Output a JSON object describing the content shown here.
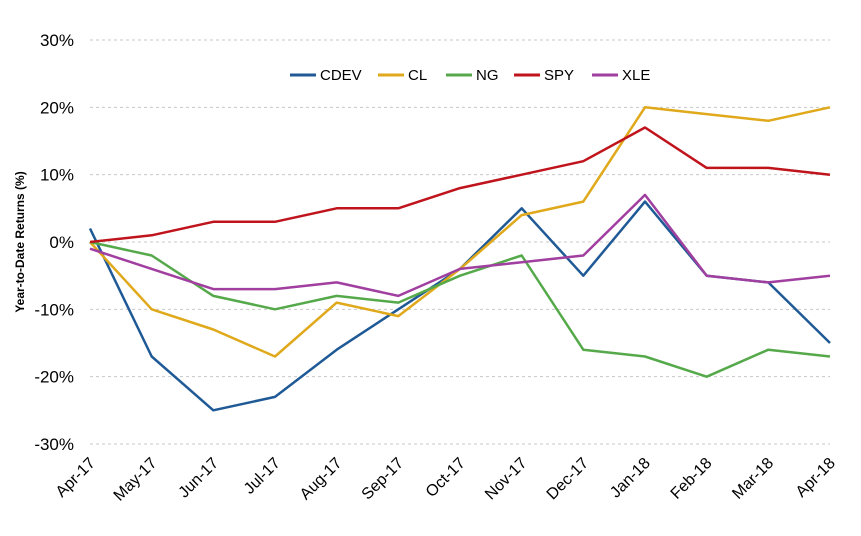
{
  "chart_data": {
    "type": "line",
    "title": "",
    "xlabel": "",
    "ylabel": "Year-to-Date Returns  (%)",
    "ylim": [
      -30,
      30
    ],
    "yticks": [
      "30%",
      "20%",
      "10%",
      "0%",
      "-10%",
      "-20%",
      "-30%"
    ],
    "ytick_values": [
      30,
      20,
      10,
      0,
      -10,
      -20,
      -30
    ],
    "categories": [
      "Apr-17",
      "May-17",
      "Jun-17",
      "Jul-17",
      "Aug-17",
      "Sep-17",
      "Oct-17",
      "Nov-17",
      "Dec-17",
      "Jan-18",
      "Feb-18",
      "Mar-18",
      "Apr-18"
    ],
    "grid": true,
    "legend_position": "top-center",
    "series": [
      {
        "name": "CDEV",
        "color": "#1f5a96",
        "values": [
          2,
          -17,
          -25,
          -23,
          -16,
          -10,
          -4,
          5,
          -5,
          6,
          -5,
          -6,
          -15
        ]
      },
      {
        "name": "CL",
        "color": "#e0a91b",
        "values": [
          0,
          -10,
          -13,
          -17,
          -9,
          -11,
          -4,
          4,
          6,
          20,
          19,
          18,
          20
        ]
      },
      {
        "name": "NG",
        "color": "#55a94a",
        "values": [
          0,
          -2,
          -8,
          -10,
          -8,
          -9,
          -5,
          -2,
          -16,
          -17,
          -20,
          -16,
          -17
        ]
      },
      {
        "name": "SPY",
        "color": "#c0141d",
        "values": [
          0,
          1,
          3,
          3,
          5,
          5,
          8,
          10,
          12,
          17,
          11,
          11,
          10
        ]
      },
      {
        "name": "XLE",
        "color": "#a13fa1",
        "values": [
          -1,
          -4,
          -7,
          -7,
          -6,
          -8,
          -4,
          -3,
          -2,
          7,
          -5,
          -6,
          -5
        ]
      }
    ]
  }
}
